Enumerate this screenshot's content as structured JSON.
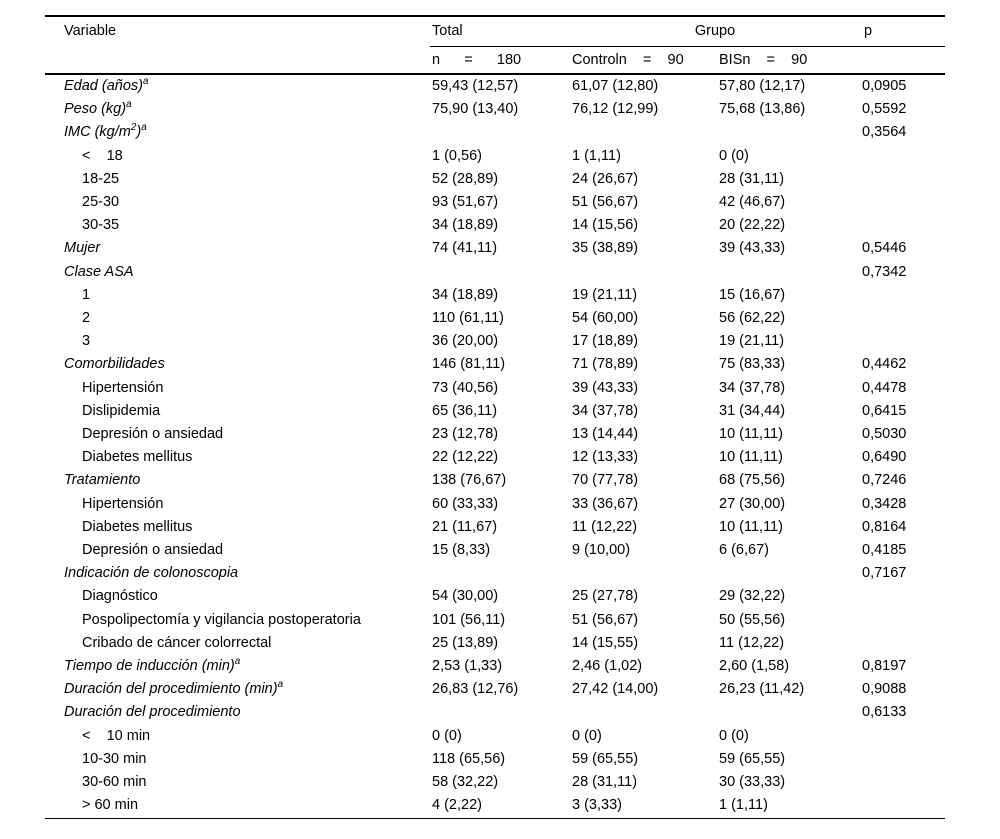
{
  "colors": {
    "background": "#ffffff",
    "text": "#000000",
    "rule": "#000000"
  },
  "table": {
    "header": {
      "variable": "Variable",
      "total": "Total",
      "grupo": "Grupo",
      "p": "p"
    },
    "subheader": {
      "total_n": "n      =      180",
      "control_n": "Controln    =    90",
      "bis_n": "BISn    =    90",
      "p_empty": ""
    },
    "rows": [
      {
        "label": "Edad (años)^{a}",
        "italic": true,
        "indent": false,
        "total": "59,43 (12,57)",
        "control": "61,07 (12,80)",
        "bis": "57,80 (12,17)",
        "p": "0,0905"
      },
      {
        "label": "Peso (kg)^{a}",
        "italic": true,
        "indent": false,
        "total": "75,90 (13,40)",
        "control": "76,12 (12,99)",
        "bis": "75,68 (13,86)",
        "p": "0,5592"
      },
      {
        "label": "IMC (kg/m^{2})^{a}",
        "italic": true,
        "indent": false,
        "total": "",
        "control": "",
        "bis": "",
        "p": "0,3564"
      },
      {
        "label": "<    18",
        "italic": false,
        "indent": true,
        "total": "1 (0,56)",
        "control": "1 (1,11)",
        "bis": "0 (0)",
        "p": ""
      },
      {
        "label": "18-25",
        "italic": false,
        "indent": true,
        "total": "52 (28,89)",
        "control": "24 (26,67)",
        "bis": "28 (31,11)",
        "p": ""
      },
      {
        "label": "25-30",
        "italic": false,
        "indent": true,
        "total": "93 (51,67)",
        "control": "51 (56,67)",
        "bis": "42 (46,67)",
        "p": ""
      },
      {
        "label": "30-35",
        "italic": false,
        "indent": true,
        "total": "34 (18,89)",
        "control": "14 (15,56)",
        "bis": "20 (22,22)",
        "p": ""
      },
      {
        "label": "Mujer",
        "italic": true,
        "indent": false,
        "total": "74 (41,11)",
        "control": "35 (38,89)",
        "bis": "39 (43,33)",
        "p": "0,5446"
      },
      {
        "label": "Clase ASA",
        "italic": true,
        "indent": false,
        "total": "",
        "control": "",
        "bis": "",
        "p": "0,7342"
      },
      {
        "label": "1",
        "italic": false,
        "indent": true,
        "total": "34 (18,89)",
        "control": "19 (21,11)",
        "bis": "15 (16,67)",
        "p": ""
      },
      {
        "label": "2",
        "italic": false,
        "indent": true,
        "total": "110 (61,11)",
        "control": "54 (60,00)",
        "bis": "56 (62,22)",
        "p": ""
      },
      {
        "label": "3",
        "italic": false,
        "indent": true,
        "total": "36 (20,00)",
        "control": "17 (18,89)",
        "bis": "19 (21,11)",
        "p": ""
      },
      {
        "label": "Comorbilidades",
        "italic": true,
        "indent": false,
        "total": "146 (81,11)",
        "control": "71 (78,89)",
        "bis": "75 (83,33)",
        "p": "0,4462"
      },
      {
        "label": "Hipertensión",
        "italic": false,
        "indent": true,
        "total": "73 (40,56)",
        "control": "39 (43,33)",
        "bis": "34 (37,78)",
        "p": "0,4478"
      },
      {
        "label": "Dislipidemia",
        "italic": false,
        "indent": true,
        "total": "65 (36,11)",
        "control": "34 (37,78)",
        "bis": "31 (34,44)",
        "p": "0,6415"
      },
      {
        "label": "Depresión o ansiedad",
        "italic": false,
        "indent": true,
        "total": "23 (12,78)",
        "control": "13 (14,44)",
        "bis": "10 (11,11)",
        "p": "0,5030"
      },
      {
        "label": "Diabetes mellitus",
        "italic": false,
        "indent": true,
        "total": "22 (12,22)",
        "control": "12 (13,33)",
        "bis": "10 (11,11)",
        "p": "0,6490"
      },
      {
        "label": "Tratamiento",
        "italic": true,
        "indent": false,
        "total": "138 (76,67)",
        "control": "70 (77,78)",
        "bis": "68 (75,56)",
        "p": "0,7246"
      },
      {
        "label": "Hipertensión",
        "italic": false,
        "indent": true,
        "total": "60 (33,33)",
        "control": "33 (36,67)",
        "bis": "27 (30,00)",
        "p": "0,3428"
      },
      {
        "label": "Diabetes mellitus",
        "italic": false,
        "indent": true,
        "total": "21 (11,67)",
        "control": "11 (12,22)",
        "bis": "10 (11,11)",
        "p": "0,8164"
      },
      {
        "label": "Depresión o ansiedad",
        "italic": false,
        "indent": true,
        "total": "15 (8,33)",
        "control": "9 (10,00)",
        "bis": "6 (6,67)",
        "p": "0,4185"
      },
      {
        "label": "Indicación de colonoscopia",
        "italic": true,
        "indent": false,
        "total": "",
        "control": "",
        "bis": "",
        "p": "0,7167"
      },
      {
        "label": "Diagnóstico",
        "italic": false,
        "indent": true,
        "total": "54 (30,00)",
        "control": "25 (27,78)",
        "bis": "29 (32,22)",
        "p": ""
      },
      {
        "label": "Pospolipectomía y vigilancia postoperatoria",
        "italic": false,
        "indent": true,
        "total": "101 (56,11)",
        "control": "51 (56,67)",
        "bis": "50 (55,56)",
        "p": ""
      },
      {
        "label": "Cribado de cáncer colorrectal",
        "italic": false,
        "indent": true,
        "total": "25 (13,89)",
        "control": "14 (15,55)",
        "bis": "11 (12,22)",
        "p": ""
      },
      {
        "label": "Tiempo de inducción (min)^{a}",
        "italic": true,
        "indent": false,
        "total": "2,53 (1,33)",
        "control": "2,46 (1,02)",
        "bis": "2,60 (1,58)",
        "p": "0,8197"
      },
      {
        "label": "Duración del procedimiento (min)^{a}",
        "italic": true,
        "indent": false,
        "total": "26,83 (12,76)",
        "control": "27,42 (14,00)",
        "bis": "26,23 (11,42)",
        "p": "0,9088"
      },
      {
        "label": "Duración del procedimiento",
        "italic": true,
        "indent": false,
        "total": "",
        "control": "",
        "bis": "",
        "p": "0,6133"
      },
      {
        "label": "<    10 min",
        "italic": false,
        "indent": true,
        "total": "0 (0)",
        "control": "0 (0)",
        "bis": "0 (0)",
        "p": ""
      },
      {
        "label": "10-30 min",
        "italic": false,
        "indent": true,
        "total": "118 (65,56)",
        "control": "59 (65,55)",
        "bis": "59 (65,55)",
        "p": ""
      },
      {
        "label": "30-60 min",
        "italic": false,
        "indent": true,
        "total": "58 (32,22)",
        "control": "28 (31,11)",
        "bis": "30 (33,33)",
        "p": ""
      },
      {
        "label": "> 60 min",
        "italic": false,
        "indent": true,
        "total": "4 (2,22)",
        "control": "3 (3,33)",
        "bis": "1 (1,11)",
        "p": ""
      }
    ]
  }
}
